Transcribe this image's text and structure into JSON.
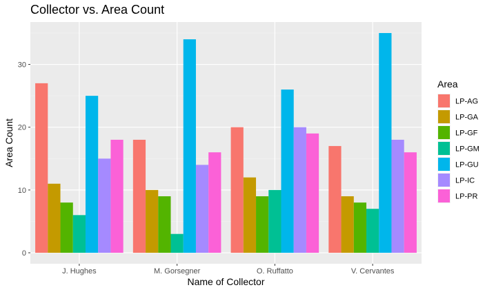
{
  "chart_data": {
    "type": "bar",
    "title": "Collector vs. Area Count",
    "xlabel": "Name of Collector",
    "ylabel": "Area Count",
    "categories": [
      "J. Hughes",
      "M. Gorsegner",
      "O. Ruffatto",
      "V. Cervantes"
    ],
    "ylim": [
      -1.75,
      36.75
    ],
    "yticks": [
      0,
      10,
      20,
      30
    ],
    "grid": true,
    "legend_title": "Area",
    "legend_position": "right",
    "series": [
      {
        "name": "LP-AG",
        "color": "#F8766D",
        "values": [
          27,
          18,
          20,
          17
        ]
      },
      {
        "name": "LP-GA",
        "color": "#C49A00",
        "values": [
          11,
          10,
          12,
          9
        ]
      },
      {
        "name": "LP-GF",
        "color": "#53B400",
        "values": [
          8,
          9,
          9,
          8
        ]
      },
      {
        "name": "LP-GM",
        "color": "#00C094",
        "values": [
          6,
          3,
          10,
          7
        ]
      },
      {
        "name": "LP-GU",
        "color": "#00B6EB",
        "values": [
          25,
          34,
          26,
          35
        ]
      },
      {
        "name": "LP-IC",
        "color": "#A58AFF",
        "values": [
          15,
          14,
          20,
          18
        ]
      },
      {
        "name": "LP-PR",
        "color": "#FB61D7",
        "values": [
          18,
          16,
          19,
          16
        ]
      }
    ]
  }
}
